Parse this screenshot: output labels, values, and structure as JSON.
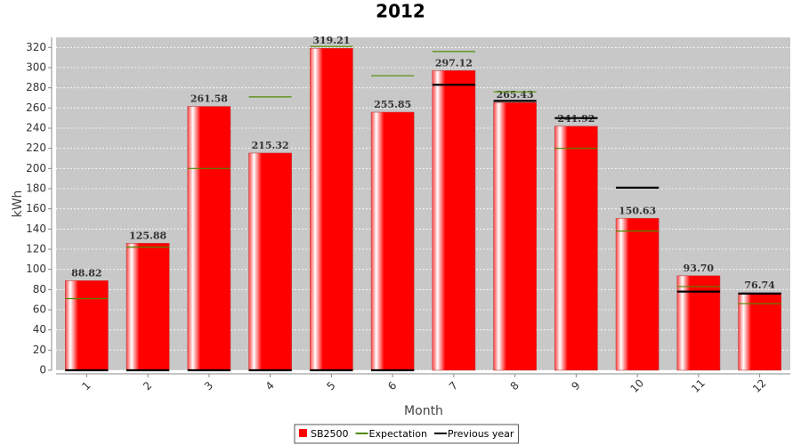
{
  "chart_data": {
    "type": "bar",
    "title": "2012",
    "x_label": "Month",
    "y_label": "kWh",
    "categories": [
      "1",
      "2",
      "3",
      "4",
      "5",
      "6",
      "7",
      "8",
      "9",
      "10",
      "11",
      "12"
    ],
    "series": [
      {
        "name": "SB2500",
        "color": "#ff0000",
        "values": [
          88.82,
          125.88,
          261.58,
          215.32,
          319.21,
          255.85,
          297.12,
          265.43,
          241.92,
          150.63,
          93.7,
          76.74
        ],
        "value_labels": [
          "88.82",
          "125.88",
          "261.58",
          "215.32",
          "319.21",
          "255.85",
          "297.12",
          "265.43",
          "241.92",
          "150.63",
          "93.70",
          "76.74"
        ]
      },
      {
        "name": "Expectation",
        "color": "#4d8a00",
        "values": [
          71,
          122,
          200,
          271,
          321,
          292,
          316,
          276,
          220,
          138,
          83,
          66
        ]
      },
      {
        "name": "Previous year",
        "color": "#000000",
        "values": [
          0,
          0,
          0,
          0,
          0,
          0,
          283,
          267,
          250,
          181,
          78,
          76
        ]
      }
    ],
    "ylim": [
      0,
      330
    ],
    "yticks": [
      0,
      20,
      40,
      60,
      80,
      100,
      120,
      140,
      160,
      180,
      200,
      220,
      240,
      260,
      280,
      300,
      320
    ],
    "grid": true
  }
}
